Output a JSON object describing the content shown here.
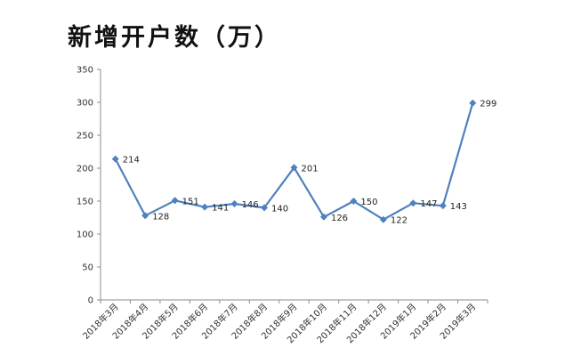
{
  "chart_data": {
    "type": "line",
    "title": "新增开户数（万）",
    "categories": [
      "2018年3月",
      "2018年4月",
      "2018年5月",
      "2018年6月",
      "2018年7月",
      "2018年8月",
      "2018年9月",
      "2018年10月",
      "2018年11月",
      "2018年12月",
      "2019年1月",
      "2019年2月",
      "2019年3月"
    ],
    "series": [
      {
        "values": [
          214,
          128,
          151,
          141,
          146,
          140,
          201,
          126,
          150,
          122,
          147,
          143,
          299
        ]
      }
    ],
    "yticks": [
      "0",
      "50",
      "100",
      "150",
      "200",
      "250",
      "300",
      "350"
    ],
    "ylim": [
      0,
      350
    ],
    "grid": false,
    "legend": "none",
    "colors": {
      "line": "#4f81bd",
      "axis": "#8c8c8c"
    }
  }
}
